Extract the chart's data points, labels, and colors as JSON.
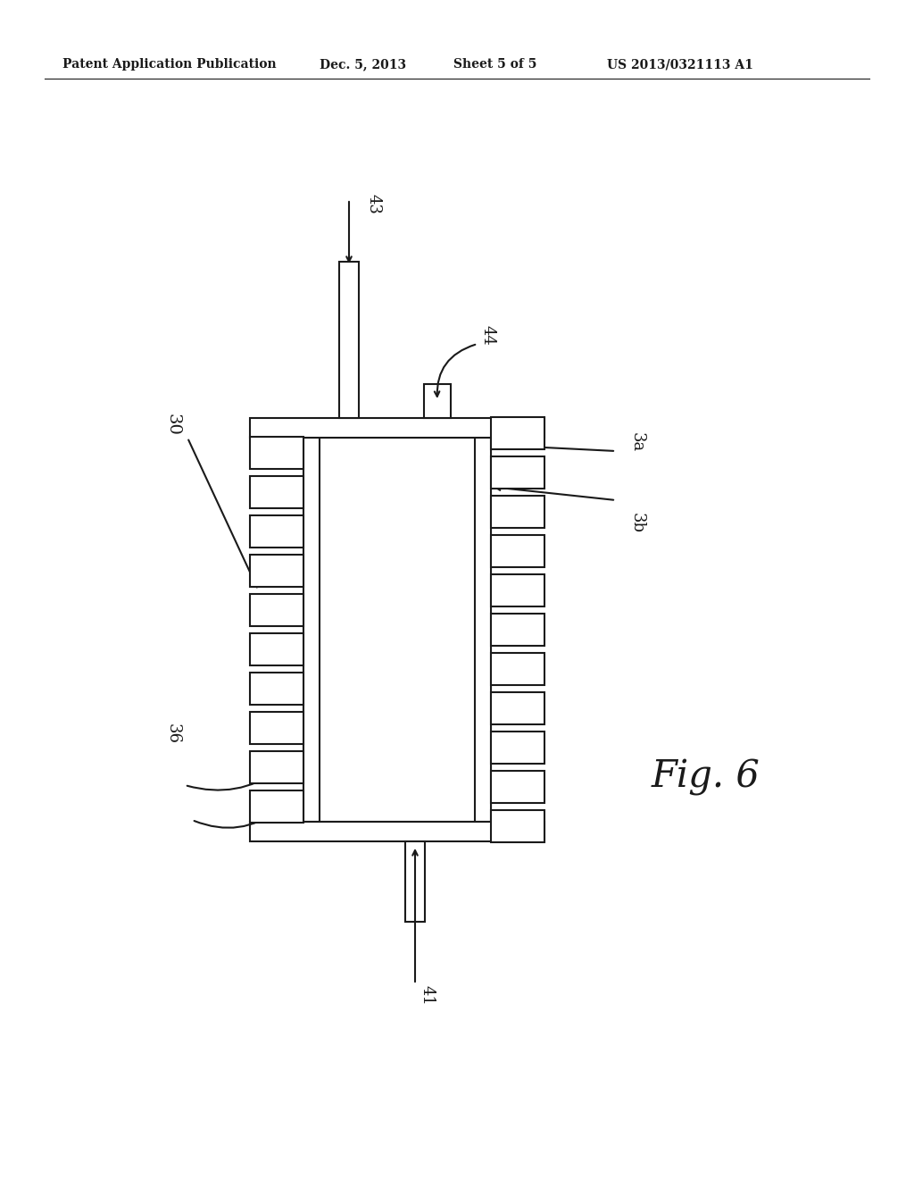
{
  "bg_color": "#ffffff",
  "line_color": "#1a1a1a",
  "header_text": "Patent Application Publication",
  "header_date": "Dec. 5, 2013",
  "header_sheet": "Sheet 5 of 5",
  "header_patent": "US 2013/0321113 A1",
  "fig_label": "Fig. 6",
  "label_30": "30",
  "label_36": "36",
  "label_41": "41",
  "label_43": "43",
  "label_44": "44",
  "label_3a": "3a",
  "label_3b": "3b"
}
